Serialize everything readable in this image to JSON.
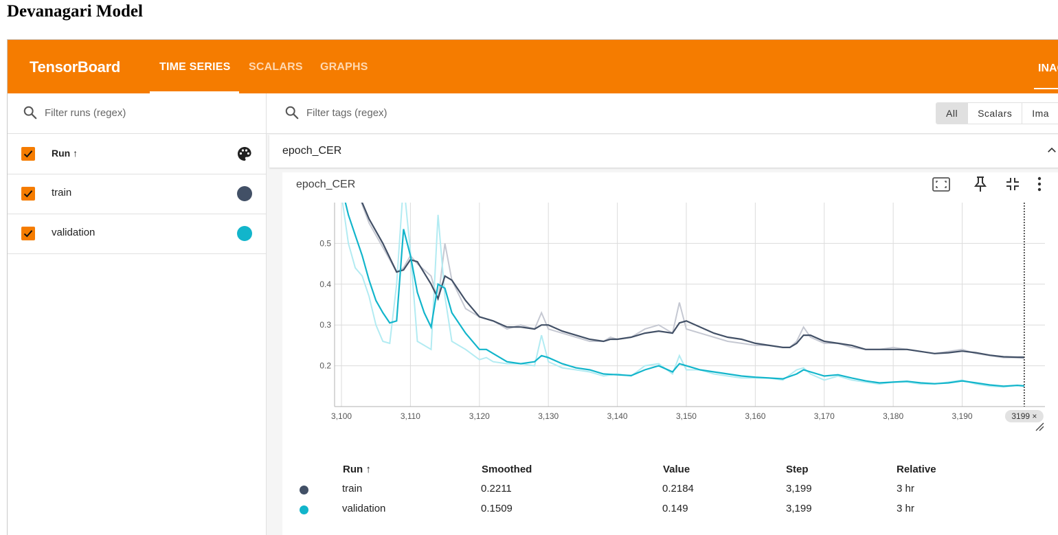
{
  "doc_title": "Devanagari Model",
  "header": {
    "brand": "TensorBoard",
    "tabs": [
      {
        "label": "TIME SERIES",
        "active": true
      },
      {
        "label": "SCALARS",
        "active": false
      },
      {
        "label": "GRAPHS",
        "active": false
      }
    ],
    "right_tab": "INAC"
  },
  "sidebar": {
    "filter_placeholder": "Filter runs (regex)",
    "header_label": "Run ↑",
    "runs": [
      {
        "name": "train",
        "color": "#425066",
        "checked": true
      },
      {
        "name": "validation",
        "color": "#12b5cb",
        "checked": true
      }
    ]
  },
  "main": {
    "filter_placeholder": "Filter tags (regex)",
    "type_toggle": [
      "All",
      "Scalars",
      "Ima"
    ],
    "selected_type": "All",
    "group_title": "epoch_CER",
    "card_title": "epoch_CER",
    "card_icons": [
      "fit-to-domain-icon",
      "pin-icon",
      "collapse-icon",
      "more-vert-icon"
    ]
  },
  "chart_data": {
    "type": "line",
    "title": "epoch_CER",
    "xlim": [
      3099,
      3202
    ],
    "ylim": [
      0.1,
      0.6
    ],
    "x_ticks": [
      "3,100",
      "3,110",
      "3,120",
      "3,130",
      "3,140",
      "3,150",
      "3,160",
      "3,170",
      "3,180",
      "3,190"
    ],
    "y_ticks": [
      "0.2",
      "0.3",
      "0.4",
      "0.5"
    ],
    "cursor_step": 3199,
    "cursor_label": "3199 ×",
    "grid": true,
    "series": [
      {
        "name": "train",
        "color": "#425066",
        "raw_color": "#c5c8d2",
        "x": [
          3102,
          3104,
          3106,
          3108,
          3109,
          3110,
          3111,
          3113,
          3114,
          3115,
          3116,
          3118,
          3120,
          3122,
          3124,
          3126,
          3128,
          3129,
          3130,
          3132,
          3134,
          3136,
          3138,
          3139,
          3140,
          3142,
          3144,
          3146,
          3148,
          3149,
          3150,
          3152,
          3154,
          3156,
          3158,
          3160,
          3162,
          3164,
          3165,
          3166,
          3167,
          3168,
          3170,
          3172,
          3174,
          3176,
          3178,
          3180,
          3182,
          3184,
          3186,
          3188,
          3190,
          3192,
          3194,
          3196,
          3198,
          3199
        ],
        "values": [
          0.64,
          0.55,
          0.49,
          0.43,
          0.44,
          0.47,
          0.45,
          0.42,
          0.36,
          0.5,
          0.41,
          0.34,
          0.32,
          0.31,
          0.29,
          0.3,
          0.29,
          0.33,
          0.29,
          0.28,
          0.27,
          0.26,
          0.26,
          0.27,
          0.265,
          0.27,
          0.29,
          0.3,
          0.28,
          0.355,
          0.29,
          0.28,
          0.27,
          0.26,
          0.255,
          0.25,
          0.25,
          0.245,
          0.245,
          0.26,
          0.295,
          0.27,
          0.255,
          0.255,
          0.245,
          0.24,
          0.24,
          0.245,
          0.24,
          0.235,
          0.23,
          0.235,
          0.24,
          0.23,
          0.225,
          0.22,
          0.22,
          0.2184
        ],
        "smoothed": [
          0.64,
          0.56,
          0.5,
          0.43,
          0.435,
          0.46,
          0.455,
          0.4,
          0.365,
          0.42,
          0.41,
          0.36,
          0.32,
          0.31,
          0.295,
          0.295,
          0.29,
          0.3,
          0.3,
          0.285,
          0.275,
          0.265,
          0.26,
          0.265,
          0.265,
          0.27,
          0.28,
          0.285,
          0.28,
          0.305,
          0.31,
          0.295,
          0.28,
          0.27,
          0.265,
          0.255,
          0.25,
          0.245,
          0.245,
          0.255,
          0.275,
          0.275,
          0.26,
          0.255,
          0.25,
          0.24,
          0.24,
          0.24,
          0.24,
          0.235,
          0.23,
          0.232,
          0.236,
          0.232,
          0.226,
          0.222,
          0.221,
          0.2211
        ]
      },
      {
        "name": "validation",
        "color": "#12b5cb",
        "raw_color": "#b2ebf2",
        "x": [
          3100,
          3101,
          3102,
          3103,
          3104,
          3105,
          3106,
          3107,
          3108,
          3109,
          3110,
          3111,
          3112,
          3113,
          3114,
          3115,
          3116,
          3118,
          3120,
          3121,
          3122,
          3124,
          3126,
          3128,
          3129,
          3130,
          3132,
          3134,
          3136,
          3138,
          3140,
          3142,
          3144,
          3146,
          3148,
          3149,
          3150,
          3152,
          3154,
          3156,
          3158,
          3160,
          3162,
          3164,
          3166,
          3167,
          3168,
          3170,
          3172,
          3174,
          3176,
          3178,
          3180,
          3182,
          3184,
          3186,
          3188,
          3190,
          3192,
          3194,
          3196,
          3198,
          3199
        ],
        "values": [
          0.62,
          0.5,
          0.44,
          0.42,
          0.37,
          0.3,
          0.26,
          0.255,
          0.4,
          0.65,
          0.48,
          0.26,
          0.25,
          0.24,
          0.57,
          0.37,
          0.26,
          0.24,
          0.215,
          0.22,
          0.21,
          0.205,
          0.205,
          0.2,
          0.275,
          0.21,
          0.195,
          0.19,
          0.185,
          0.175,
          0.18,
          0.175,
          0.2,
          0.205,
          0.18,
          0.225,
          0.19,
          0.19,
          0.18,
          0.175,
          0.17,
          0.17,
          0.17,
          0.165,
          0.19,
          0.195,
          0.18,
          0.165,
          0.175,
          0.165,
          0.16,
          0.155,
          0.16,
          0.16,
          0.155,
          0.155,
          0.16,
          0.165,
          0.155,
          0.15,
          0.148,
          0.152,
          0.149
        ],
        "smoothed": [
          0.64,
          0.57,
          0.52,
          0.47,
          0.41,
          0.36,
          0.33,
          0.305,
          0.31,
          0.535,
          0.47,
          0.38,
          0.33,
          0.295,
          0.4,
          0.39,
          0.33,
          0.28,
          0.24,
          0.24,
          0.23,
          0.21,
          0.205,
          0.21,
          0.225,
          0.22,
          0.205,
          0.195,
          0.19,
          0.18,
          0.178,
          0.176,
          0.19,
          0.2,
          0.185,
          0.205,
          0.2,
          0.19,
          0.185,
          0.18,
          0.175,
          0.172,
          0.17,
          0.168,
          0.18,
          0.19,
          0.185,
          0.175,
          0.178,
          0.17,
          0.163,
          0.158,
          0.16,
          0.162,
          0.158,
          0.156,
          0.158,
          0.163,
          0.158,
          0.153,
          0.15,
          0.152,
          0.1509
        ]
      }
    ]
  },
  "legend_table": {
    "headers": [
      "Run ↑",
      "Smoothed",
      "Value",
      "Step",
      "Relative"
    ],
    "rows": [
      {
        "name": "train",
        "color": "#425066",
        "smoothed": "0.2211",
        "value": "0.2184",
        "step": "3,199",
        "relative": "3 hr"
      },
      {
        "name": "validation",
        "color": "#12b5cb",
        "smoothed": "0.1509",
        "value": "0.149",
        "step": "3,199",
        "relative": "3 hr"
      }
    ]
  }
}
